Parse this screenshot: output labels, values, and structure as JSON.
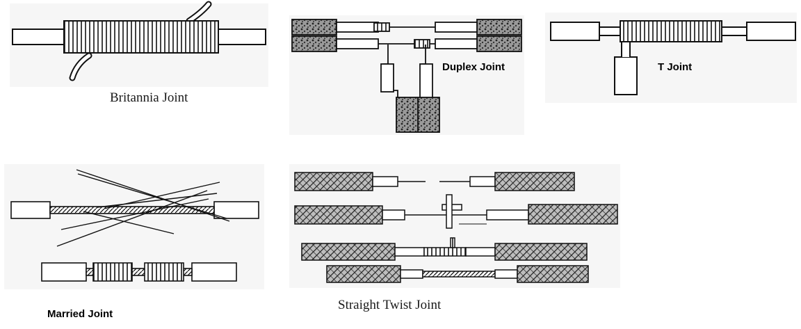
{
  "labels": {
    "britannia": "Britannia Joint",
    "duplex": "Duplex Joint",
    "t_joint": "T Joint",
    "married": "Married Joint",
    "straight_twist": "Straight Twist Joint"
  },
  "colors": {
    "ink": "#111111",
    "panel": "#f6f6f6",
    "insulation": "#ffffff",
    "braid": "#3a3a3a"
  }
}
